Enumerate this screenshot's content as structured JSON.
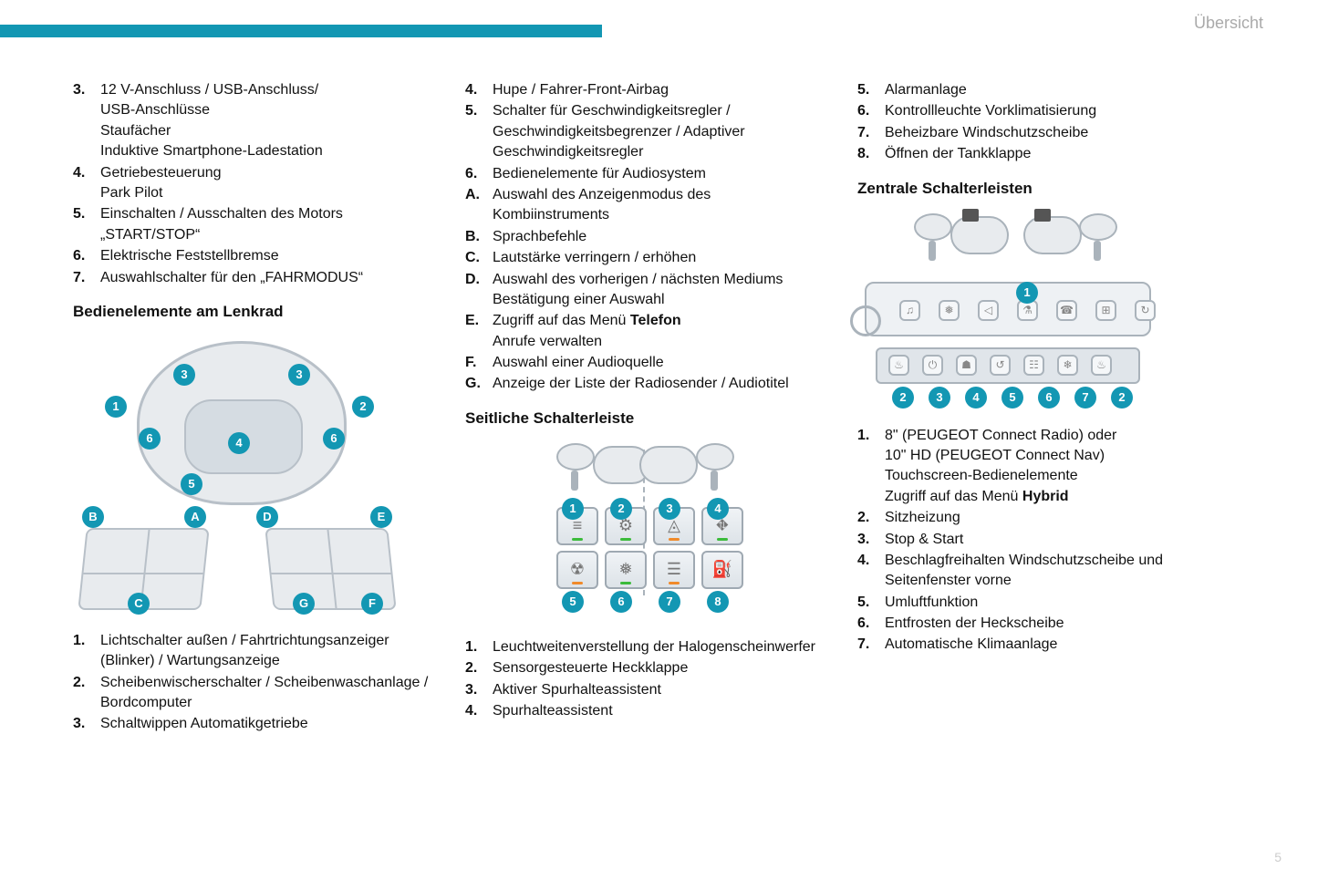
{
  "header": {
    "label": "Übersicht",
    "accent_color": "#1397b3"
  },
  "page_number": "5",
  "col1": {
    "top_list": [
      {
        "n": "3.",
        "lines": [
          "12 V-Anschluss / USB-Anschluss/",
          "USB-Anschlüsse",
          "Staufächer",
          "Induktive Smartphone-Ladestation"
        ]
      },
      {
        "n": "4.",
        "lines": [
          "Getriebesteuerung",
          "Park Pilot"
        ]
      },
      {
        "n": "5.",
        "lines": [
          "Einschalten / Ausschalten des Motors „START/STOP“"
        ]
      },
      {
        "n": "6.",
        "lines": [
          "Elektrische Feststellbremse"
        ]
      },
      {
        "n": "7.",
        "lines": [
          "Auswahlschalter für den „FAHRMODUS“"
        ]
      }
    ],
    "heading1": "Bedienelemente am Lenkrad",
    "bottom_list": [
      {
        "n": "1.",
        "lines": [
          "Lichtschalter außen / Fahrtrichtungsanzeiger (Blinker) / Wartungsanzeige"
        ]
      },
      {
        "n": "2.",
        "lines": [
          "Scheibenwischerschalter / Scheibenwaschanlage / Bordcomputer"
        ]
      },
      {
        "n": "3.",
        "lines": [
          "Schaltwippen Automatikgetriebe"
        ]
      }
    ]
  },
  "col2": {
    "top_list": [
      {
        "n": "4.",
        "lines": [
          "Hupe / Fahrer-Front-Airbag"
        ]
      },
      {
        "n": "5.",
        "lines": [
          "Schalter für Geschwindigkeitsregler / Geschwindigkeitsbegrenzer / Adaptiver Geschwindigkeitsregler"
        ]
      },
      {
        "n": "6.",
        "lines": [
          "Bedienelemente für Audiosystem"
        ]
      },
      {
        "n": "A.",
        "lines": [
          "Auswahl des Anzeigenmodus des Kombiinstruments"
        ]
      },
      {
        "n": "B.",
        "lines": [
          "Sprachbefehle"
        ]
      },
      {
        "n": "C.",
        "lines": [
          "Lautstärke verringern / erhöhen"
        ]
      },
      {
        "n": "D.",
        "lines": [
          "Auswahl des vorherigen / nächsten Mediums",
          "Bestätigung einer Auswahl"
        ]
      },
      {
        "n": "E.",
        "lines_rich": [
          {
            "pre": "Zugriff auf das Menü ",
            "bold": "Telefon"
          },
          {
            "pre": "Anrufe verwalten"
          }
        ]
      },
      {
        "n": "F.",
        "lines": [
          "Auswahl einer Audioquelle"
        ]
      },
      {
        "n": "G.",
        "lines": [
          "Anzeige der Liste der Radiosender / Audiotitel"
        ]
      }
    ],
    "heading2": "Seitliche Schalterleiste",
    "bottom_list": [
      {
        "n": "1.",
        "lines": [
          "Leuchtweitenverstellung der Halogenscheinwerfer"
        ]
      },
      {
        "n": "2.",
        "lines": [
          "Sensorgesteuerte Heckklappe"
        ]
      },
      {
        "n": "3.",
        "lines": [
          "Aktiver Spurhalteassistent"
        ]
      },
      {
        "n": "4.",
        "lines": [
          "Spurhalteassistent"
        ]
      }
    ]
  },
  "col3": {
    "top_list": [
      {
        "n": "5.",
        "lines": [
          "Alarmanlage"
        ]
      },
      {
        "n": "6.",
        "lines": [
          "Kontrollleuchte Vorklimatisierung"
        ]
      },
      {
        "n": "7.",
        "lines": [
          "Beheizbare Windschutzscheibe"
        ]
      },
      {
        "n": "8.",
        "lines": [
          "Öffnen der Tankklappe"
        ]
      }
    ],
    "heading3": "Zentrale Schalterleisten",
    "bottom_list": [
      {
        "n": "1.",
        "lines_rich": [
          {
            "pre": "8\" (PEUGEOT Connect Radio) oder"
          },
          {
            "pre": "10\" HD (PEUGEOT Connect Nav)"
          },
          {
            "pre": "Touchscreen-Bedienelemente"
          },
          {
            "pre": "Zugriff auf das Menü ",
            "bold": "Hybrid"
          }
        ]
      },
      {
        "n": "2.",
        "lines": [
          "Sitzheizung"
        ]
      },
      {
        "n": "3.",
        "lines": [
          "Stop & Start"
        ]
      },
      {
        "n": "4.",
        "lines": [
          "Beschlagfreihalten Windschutzscheibe und Seitenfenster vorne"
        ]
      },
      {
        "n": "5.",
        "lines": [
          "Umluftfunktion"
        ]
      },
      {
        "n": "6.",
        "lines": [
          "Entfrosten der Heckscheibe"
        ]
      },
      {
        "n": "7.",
        "lines": [
          "Automatische Klimaanlage"
        ]
      }
    ]
  },
  "diagram1_callouts": [
    "1",
    "2",
    "3",
    "3",
    "4",
    "5",
    "6",
    "6",
    "A",
    "B",
    "C",
    "D",
    "E",
    "F",
    "G"
  ],
  "diagram2_callouts": [
    "1",
    "2",
    "3",
    "4",
    "5",
    "6",
    "7",
    "8"
  ],
  "diagram3_callouts": [
    "1",
    "2",
    "3",
    "4",
    "5",
    "6",
    "7",
    "2"
  ]
}
